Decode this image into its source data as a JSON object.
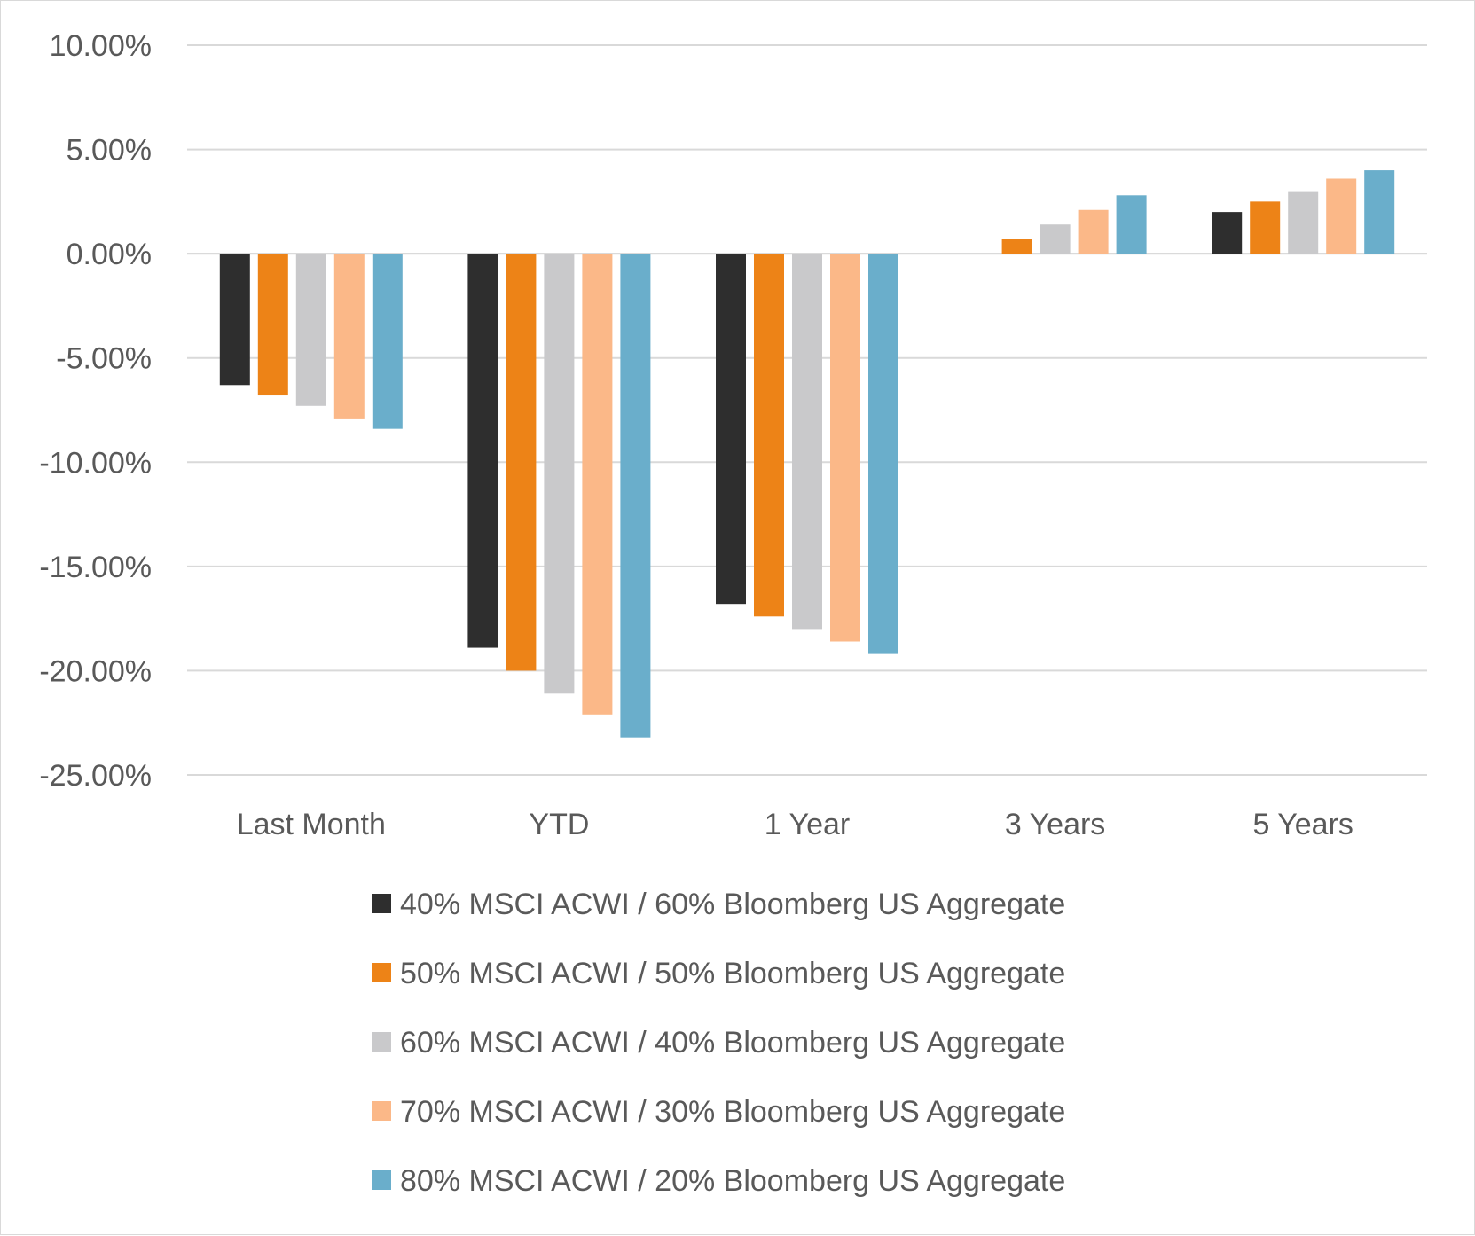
{
  "chart_data": {
    "type": "bar",
    "title": "",
    "xlabel": "",
    "ylabel": "",
    "categories": [
      "Last Month",
      "YTD",
      "1 Year",
      "3 Years",
      "5 Years"
    ],
    "yticks": [
      "10.00%",
      "5.00%",
      "0.00%",
      "-5.00%",
      "-10.00%",
      "-15.00%",
      "-20.00%",
      "-25.00%"
    ],
    "ylim": [
      -25,
      10
    ],
    "grid": true,
    "legend_position": "bottom",
    "series": [
      {
        "name": "40% MSCI ACWI / 60% Bloomberg US Aggregate",
        "color": "#2e2e2e",
        "values": [
          -6.3,
          -18.9,
          -16.8,
          0.0,
          2.0
        ]
      },
      {
        "name": "50% MSCI ACWI / 50% Bloomberg US Aggregate",
        "color": "#ed8317",
        "values": [
          -6.8,
          -20.0,
          -17.4,
          0.7,
          2.5
        ]
      },
      {
        "name": "60% MSCI ACWI / 40% Bloomberg US Aggregate",
        "color": "#c9c9cb",
        "values": [
          -7.3,
          -21.1,
          -18.0,
          1.4,
          3.0
        ]
      },
      {
        "name": "70% MSCI ACWI / 30% Bloomberg US Aggregate",
        "color": "#fbb888",
        "values": [
          -7.9,
          -22.1,
          -18.6,
          2.1,
          3.6
        ]
      },
      {
        "name": "80% MSCI ACWI / 20% Bloomberg US Aggregate",
        "color": "#6aaecb",
        "values": [
          -8.4,
          -23.2,
          -19.2,
          2.8,
          4.0
        ]
      }
    ]
  }
}
